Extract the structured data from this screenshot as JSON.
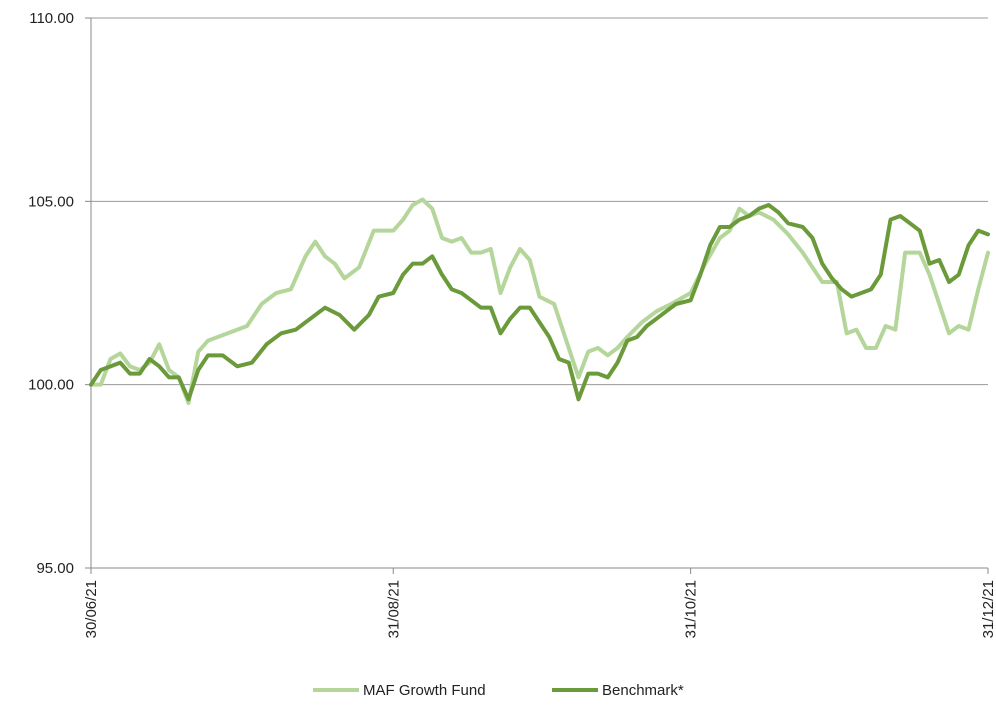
{
  "chart_data": {
    "type": "line",
    "title": "",
    "xlabel": "",
    "ylabel": "",
    "ylim": [
      95,
      110
    ],
    "y_ticks": [
      "95.00",
      "100.00",
      "105.00",
      "110.00"
    ],
    "x_ticks": [
      "30/06/21",
      "31/08/21",
      "31/10/21",
      "31/12/21"
    ],
    "gridlines": "horizontal",
    "legend_position": "bottom",
    "series": [
      {
        "name": "MAF Growth Fund",
        "color": "#b5d69a",
        "points": [
          [
            "2021-06-30",
            100.0
          ],
          [
            "2021-07-02",
            100.0
          ],
          [
            "2021-07-04",
            100.7
          ],
          [
            "2021-07-06",
            100.85
          ],
          [
            "2021-07-08",
            100.5
          ],
          [
            "2021-07-10",
            100.4
          ],
          [
            "2021-07-12",
            100.6
          ],
          [
            "2021-07-14",
            101.1
          ],
          [
            "2021-07-16",
            100.4
          ],
          [
            "2021-07-18",
            100.2
          ],
          [
            "2021-07-20",
            99.5
          ],
          [
            "2021-07-22",
            100.9
          ],
          [
            "2021-07-24",
            101.2
          ],
          [
            "2021-07-28",
            101.4
          ],
          [
            "2021-08-01",
            101.6
          ],
          [
            "2021-08-04",
            102.2
          ],
          [
            "2021-08-07",
            102.5
          ],
          [
            "2021-08-10",
            102.6
          ],
          [
            "2021-08-13",
            103.5
          ],
          [
            "2021-08-15",
            103.9
          ],
          [
            "2021-08-17",
            103.5
          ],
          [
            "2021-08-19",
            103.3
          ],
          [
            "2021-08-21",
            102.9
          ],
          [
            "2021-08-24",
            103.2
          ],
          [
            "2021-08-27",
            104.2
          ],
          [
            "2021-08-31",
            104.2
          ],
          [
            "2021-09-02",
            104.5
          ],
          [
            "2021-09-04",
            104.9
          ],
          [
            "2021-09-06",
            105.05
          ],
          [
            "2021-09-08",
            104.8
          ],
          [
            "2021-09-10",
            104.0
          ],
          [
            "2021-09-12",
            103.9
          ],
          [
            "2021-09-14",
            104.0
          ],
          [
            "2021-09-16",
            103.6
          ],
          [
            "2021-09-18",
            103.6
          ],
          [
            "2021-09-20",
            103.7
          ],
          [
            "2021-09-22",
            102.5
          ],
          [
            "2021-09-24",
            103.2
          ],
          [
            "2021-09-26",
            103.7
          ],
          [
            "2021-09-28",
            103.4
          ],
          [
            "2021-09-30",
            102.4
          ],
          [
            "2021-10-03",
            102.2
          ],
          [
            "2021-10-06",
            101.0
          ],
          [
            "2021-10-08",
            100.2
          ],
          [
            "2021-10-10",
            100.9
          ],
          [
            "2021-10-12",
            101.0
          ],
          [
            "2021-10-14",
            100.8
          ],
          [
            "2021-10-16",
            101.0
          ],
          [
            "2021-10-18",
            101.3
          ],
          [
            "2021-10-21",
            101.7
          ],
          [
            "2021-10-24",
            102.0
          ],
          [
            "2021-10-27",
            102.2
          ],
          [
            "2021-10-31",
            102.5
          ],
          [
            "2021-11-03",
            103.3
          ],
          [
            "2021-11-06",
            104.0
          ],
          [
            "2021-11-08",
            104.2
          ],
          [
            "2021-11-10",
            104.8
          ],
          [
            "2021-11-12",
            104.6
          ],
          [
            "2021-11-14",
            104.7
          ],
          [
            "2021-11-17",
            104.5
          ],
          [
            "2021-11-20",
            104.1
          ],
          [
            "2021-11-23",
            103.6
          ],
          [
            "2021-11-25",
            103.2
          ],
          [
            "2021-11-27",
            102.8
          ],
          [
            "2021-11-30",
            102.8
          ],
          [
            "2021-12-02",
            101.4
          ],
          [
            "2021-12-04",
            101.5
          ],
          [
            "2021-12-06",
            101.0
          ],
          [
            "2021-12-08",
            101.0
          ],
          [
            "2021-12-10",
            101.6
          ],
          [
            "2021-12-12",
            101.5
          ],
          [
            "2021-12-14",
            103.6
          ],
          [
            "2021-12-17",
            103.6
          ],
          [
            "2021-12-19",
            103.0
          ],
          [
            "2021-12-21",
            102.2
          ],
          [
            "2021-12-23",
            101.4
          ],
          [
            "2021-12-25",
            101.6
          ],
          [
            "2021-12-27",
            101.5
          ],
          [
            "2021-12-29",
            102.6
          ],
          [
            "2021-12-31",
            103.6
          ]
        ]
      },
      {
        "name": "Benchmark*",
        "color": "#6b9a3a",
        "points": [
          [
            "2021-06-30",
            100.0
          ],
          [
            "2021-07-02",
            100.4
          ],
          [
            "2021-07-04",
            100.5
          ],
          [
            "2021-07-06",
            100.6
          ],
          [
            "2021-07-08",
            100.3
          ],
          [
            "2021-07-10",
            100.3
          ],
          [
            "2021-07-12",
            100.7
          ],
          [
            "2021-07-14",
            100.5
          ],
          [
            "2021-07-16",
            100.2
          ],
          [
            "2021-07-18",
            100.2
          ],
          [
            "2021-07-20",
            99.6
          ],
          [
            "2021-07-22",
            100.4
          ],
          [
            "2021-07-24",
            100.8
          ],
          [
            "2021-07-27",
            100.8
          ],
          [
            "2021-07-30",
            100.5
          ],
          [
            "2021-08-02",
            100.6
          ],
          [
            "2021-08-05",
            101.1
          ],
          [
            "2021-08-08",
            101.4
          ],
          [
            "2021-08-11",
            101.5
          ],
          [
            "2021-08-14",
            101.8
          ],
          [
            "2021-08-17",
            102.1
          ],
          [
            "2021-08-20",
            101.9
          ],
          [
            "2021-08-23",
            101.5
          ],
          [
            "2021-08-26",
            101.9
          ],
          [
            "2021-08-28",
            102.4
          ],
          [
            "2021-08-31",
            102.5
          ],
          [
            "2021-09-02",
            103.0
          ],
          [
            "2021-09-04",
            103.3
          ],
          [
            "2021-09-06",
            103.3
          ],
          [
            "2021-09-08",
            103.5
          ],
          [
            "2021-09-10",
            103.0
          ],
          [
            "2021-09-12",
            102.6
          ],
          [
            "2021-09-14",
            102.5
          ],
          [
            "2021-09-16",
            102.3
          ],
          [
            "2021-09-18",
            102.1
          ],
          [
            "2021-09-20",
            102.1
          ],
          [
            "2021-09-22",
            101.4
          ],
          [
            "2021-09-24",
            101.8
          ],
          [
            "2021-09-26",
            102.1
          ],
          [
            "2021-09-28",
            102.1
          ],
          [
            "2021-09-30",
            101.7
          ],
          [
            "2021-10-02",
            101.3
          ],
          [
            "2021-10-04",
            100.7
          ],
          [
            "2021-10-06",
            100.6
          ],
          [
            "2021-10-08",
            99.6
          ],
          [
            "2021-10-10",
            100.3
          ],
          [
            "2021-10-12",
            100.3
          ],
          [
            "2021-10-14",
            100.2
          ],
          [
            "2021-10-16",
            100.6
          ],
          [
            "2021-10-18",
            101.2
          ],
          [
            "2021-10-20",
            101.3
          ],
          [
            "2021-10-22",
            101.6
          ],
          [
            "2021-10-24",
            101.8
          ],
          [
            "2021-10-26",
            102.0
          ],
          [
            "2021-10-28",
            102.2
          ],
          [
            "2021-10-31",
            102.3
          ],
          [
            "2021-11-02",
            103.0
          ],
          [
            "2021-11-04",
            103.8
          ],
          [
            "2021-11-06",
            104.3
          ],
          [
            "2021-11-08",
            104.3
          ],
          [
            "2021-11-10",
            104.5
          ],
          [
            "2021-11-12",
            104.6
          ],
          [
            "2021-11-14",
            104.8
          ],
          [
            "2021-11-16",
            104.9
          ],
          [
            "2021-11-18",
            104.7
          ],
          [
            "2021-11-20",
            104.4
          ],
          [
            "2021-11-23",
            104.3
          ],
          [
            "2021-11-25",
            104.0
          ],
          [
            "2021-11-27",
            103.3
          ],
          [
            "2021-11-29",
            102.9
          ],
          [
            "2021-12-01",
            102.6
          ],
          [
            "2021-12-03",
            102.4
          ],
          [
            "2021-12-05",
            102.5
          ],
          [
            "2021-12-07",
            102.6
          ],
          [
            "2021-12-09",
            103.0
          ],
          [
            "2021-12-11",
            104.5
          ],
          [
            "2021-12-13",
            104.6
          ],
          [
            "2021-12-15",
            104.4
          ],
          [
            "2021-12-17",
            104.2
          ],
          [
            "2021-12-19",
            103.3
          ],
          [
            "2021-12-21",
            103.4
          ],
          [
            "2021-12-23",
            102.8
          ],
          [
            "2021-12-25",
            103.0
          ],
          [
            "2021-12-27",
            103.8
          ],
          [
            "2021-12-29",
            104.2
          ],
          [
            "2021-12-31",
            104.1
          ]
        ]
      }
    ]
  }
}
